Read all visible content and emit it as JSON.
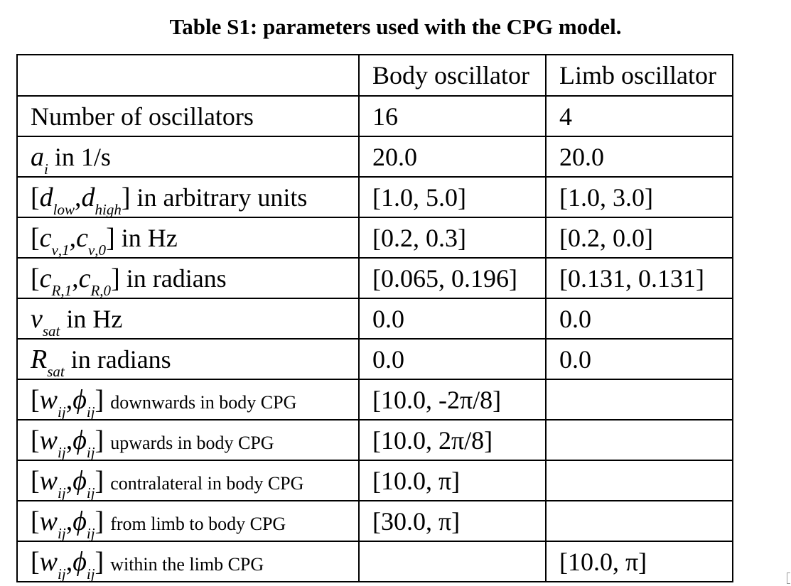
{
  "title": "Table S1: parameters used with the CPG model.",
  "headers": [
    "",
    "Body oscillator",
    "Limb oscillator"
  ],
  "rows": [
    {
      "label": {
        "sym": "",
        "sub": "",
        "text": "Number of oscillators"
      },
      "body": "16",
      "limb": "4"
    },
    {
      "label": {
        "sym": "a",
        "sub": "i",
        "text": "in 1/s"
      },
      "body": "20.0",
      "limb": "20.0"
    },
    {
      "label": {
        "open": "[",
        "sym1": "d",
        "sub1": "low",
        "sep": ",",
        "sym2": "d",
        "sub2": "high",
        "close": "]",
        "text": "in arbitrary units"
      },
      "body": "[1.0, 5.0]",
      "limb": "[1.0, 3.0]"
    },
    {
      "label": {
        "open": "[",
        "sym1": "c",
        "sub1": "ν,1",
        "sep": ",",
        "sym2": "c",
        "sub2": "ν,0",
        "close": "]",
        "text": "in Hz"
      },
      "body": "[0.2, 0.3]",
      "limb": "[0.2, 0.0]"
    },
    {
      "label": {
        "open": "[",
        "sym1": "c",
        "sub1": "R,1",
        "sep": ",",
        "sym2": "c",
        "sub2": "R,0",
        "close": "]",
        "text": "in radians"
      },
      "body": "[0.065, 0.196]",
      "limb": "[0.131, 0.131]"
    },
    {
      "label": {
        "sym": "ν",
        "sub": "sat",
        "text": "in Hz"
      },
      "body": "0.0",
      "limb": "0.0"
    },
    {
      "label": {
        "sym": "R",
        "sub": "sat",
        "text": "in radians"
      },
      "body": "0.0",
      "limb": "0.0"
    },
    {
      "label": {
        "open": "[",
        "sym1": "w",
        "sub1": "ij",
        "sep": ",",
        "sym2": "ϕ",
        "sub2": "ij",
        "close": "]",
        "text": "downwards in body CPG"
      },
      "body": "[10.0, -2π/8]",
      "limb": ""
    },
    {
      "label": {
        "open": "[",
        "sym1": "w",
        "sub1": "ij",
        "sep": ",",
        "sym2": "ϕ",
        "sub2": "ij",
        "close": "]",
        "text": "upwards in body CPG"
      },
      "body": "[10.0, 2π/8]",
      "limb": ""
    },
    {
      "label": {
        "open": "[",
        "sym1": "w",
        "sub1": "ij",
        "sep": ",",
        "sym2": "ϕ",
        "sub2": "ij",
        "close": "]",
        "text": "contralateral in body CPG"
      },
      "body": "[10.0, π]",
      "limb": ""
    },
    {
      "label": {
        "open": "[",
        "sym1": "w",
        "sub1": "ij",
        "sep": ",",
        "sym2": "ϕ",
        "sub2": "ij",
        "close": "]",
        "text": "from limb to body CPG"
      },
      "body": "[30.0, π]",
      "limb": ""
    },
    {
      "label": {
        "open": "[",
        "sym1": "w",
        "sub1": "ij",
        "sep": ",",
        "sym2": "ϕ",
        "sub2": "ij",
        "close": "]",
        "text": "within the limb CPG"
      },
      "body": "",
      "limb": "[10.0, π]"
    }
  ]
}
